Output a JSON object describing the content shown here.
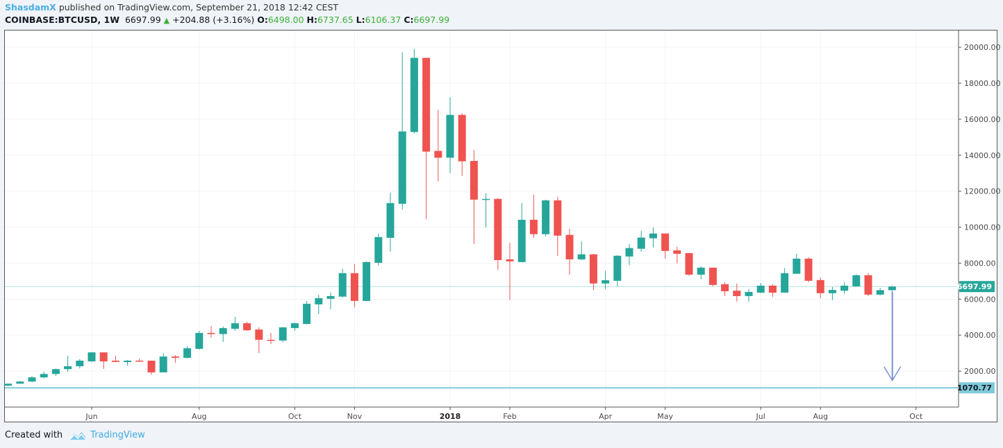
{
  "header": {
    "author": "ShasdamX",
    "published_text": "published on TradingView.com, September 21, 2018 12:42 CEST",
    "symbol": "COINBASE:BTCUSD, 1W",
    "last": "6697.99",
    "change": "+204.88 (+3.16%)",
    "o_label": "O:",
    "o": "6498.00",
    "h_label": "H:",
    "h": "6737.65",
    "l_label": "L:",
    "l": "6106.37",
    "c_label": "C:",
    "c": "6697.99",
    "change_icon": "triangle-up-icon"
  },
  "footer": {
    "created_with": "Created with",
    "brand": "TradingView",
    "logo_icon": "tradingview-cloud-logo"
  },
  "colors": {
    "up": "#26a69a",
    "down": "#ef5350",
    "last_price_line": "#b2e0dc",
    "support_line": "#7ecad8",
    "arrow": "#7b8fd6",
    "header_values": "#3bb03b"
  },
  "chart_data": {
    "type": "candlestick",
    "interval": "1W",
    "ylim": [
      0,
      20930
    ],
    "y_ticks": [
      "2000.00",
      "4000.00",
      "6000.00",
      "8000.00",
      "10000.00",
      "12000.00",
      "14000.00",
      "16000.00",
      "18000.00",
      "20000.00"
    ],
    "y_tick_values": [
      2000,
      4000,
      6000,
      8000,
      10000,
      12000,
      14000,
      16000,
      18000,
      20000
    ],
    "x_ticks": [
      {
        "label": "Jun",
        "date": "2017-06-05",
        "bold": false
      },
      {
        "label": "Aug",
        "date": "2017-08-07",
        "bold": false
      },
      {
        "label": "Oct",
        "date": "2017-10-02",
        "bold": false
      },
      {
        "label": "Nov",
        "date": "2017-11-06",
        "bold": false
      },
      {
        "label": "2018",
        "date": "2018-01-01",
        "bold": true
      },
      {
        "label": "Feb",
        "date": "2018-02-05",
        "bold": false
      },
      {
        "label": "Apr",
        "date": "2018-04-02",
        "bold": false
      },
      {
        "label": "May",
        "date": "2018-05-07",
        "bold": false
      },
      {
        "label": "Jul",
        "date": "2018-07-02",
        "bold": false
      },
      {
        "label": "Aug",
        "date": "2018-08-06",
        "bold": false
      },
      {
        "label": "Oct",
        "date": "2018-10-01",
        "bold": false
      }
    ],
    "grid": true,
    "columns": [
      "date",
      "open",
      "high",
      "low",
      "close"
    ],
    "candles": [
      [
        "2017-04-17",
        1190,
        1310,
        1180,
        1300
      ],
      [
        "2017-04-24",
        1300,
        1450,
        1290,
        1420
      ],
      [
        "2017-05-01",
        1420,
        1730,
        1390,
        1650
      ],
      [
        "2017-05-08",
        1650,
        1960,
        1610,
        1840
      ],
      [
        "2017-05-15",
        1840,
        2140,
        1730,
        2110
      ],
      [
        "2017-05-22",
        2110,
        2850,
        1960,
        2270
      ],
      [
        "2017-05-29",
        2270,
        2660,
        2150,
        2580
      ],
      [
        "2017-06-05",
        2540,
        3050,
        2520,
        3040
      ],
      [
        "2017-06-12",
        3040,
        3040,
        2120,
        2540
      ],
      [
        "2017-06-19",
        2580,
        2850,
        2500,
        2510
      ],
      [
        "2017-06-26",
        2500,
        2620,
        2310,
        2580
      ],
      [
        "2017-07-03",
        2580,
        2700,
        2540,
        2560
      ],
      [
        "2017-07-10",
        2580,
        2580,
        1800,
        1930
      ],
      [
        "2017-07-17",
        1930,
        3000,
        1930,
        2810
      ],
      [
        "2017-07-24",
        2810,
        2890,
        2460,
        2740
      ],
      [
        "2017-07-31",
        2740,
        3390,
        2700,
        3270
      ],
      [
        "2017-08-07",
        3240,
        4240,
        3200,
        4120
      ],
      [
        "2017-08-14",
        4120,
        4510,
        3860,
        4060
      ],
      [
        "2017-08-21",
        4060,
        4480,
        3620,
        4390
      ],
      [
        "2017-08-28",
        4350,
        5010,
        4240,
        4660
      ],
      [
        "2017-09-04",
        4660,
        4740,
        4240,
        4270
      ],
      [
        "2017-09-11",
        4310,
        4430,
        3000,
        3740
      ],
      [
        "2017-09-18",
        3740,
        4120,
        3500,
        3700
      ],
      [
        "2017-09-25",
        3700,
        4450,
        3600,
        4430
      ],
      [
        "2017-10-02",
        4390,
        4700,
        4240,
        4660
      ],
      [
        "2017-10-09",
        4620,
        5890,
        4600,
        5740
      ],
      [
        "2017-10-16",
        5710,
        6240,
        5170,
        6050
      ],
      [
        "2017-10-23",
        6020,
        6370,
        5440,
        6170
      ],
      [
        "2017-10-30",
        6140,
        7690,
        6100,
        7440
      ],
      [
        "2017-11-06",
        7440,
        7940,
        5550,
        5900
      ],
      [
        "2017-11-13",
        5900,
        8100,
        5880,
        8060
      ],
      [
        "2017-11-20",
        8020,
        9650,
        7870,
        9450
      ],
      [
        "2017-11-27",
        9410,
        11920,
        8640,
        11340
      ],
      [
        "2017-12-04",
        11300,
        19720,
        10990,
        15320
      ],
      [
        "2017-12-11",
        15290,
        19910,
        15200,
        19410
      ],
      [
        "2017-12-18",
        19410,
        19410,
        10450,
        14200
      ],
      [
        "2017-12-25",
        14240,
        16520,
        12540,
        13860
      ],
      [
        "2018-01-01",
        13860,
        17220,
        13000,
        16240
      ],
      [
        "2018-01-08",
        16240,
        16330,
        12850,
        13660
      ],
      [
        "2018-01-15",
        13680,
        14280,
        9070,
        11530
      ],
      [
        "2018-01-22",
        11530,
        11880,
        9990,
        11570
      ],
      [
        "2018-01-29",
        11570,
        11620,
        7630,
        8170
      ],
      [
        "2018-02-05",
        8210,
        9130,
        5940,
        8100
      ],
      [
        "2018-02-12",
        8060,
        11340,
        8060,
        10410
      ],
      [
        "2018-02-19",
        10410,
        11810,
        9410,
        9610
      ],
      [
        "2018-02-26",
        9610,
        11530,
        9490,
        11490
      ],
      [
        "2018-03-05",
        11490,
        11690,
        8400,
        9530
      ],
      [
        "2018-03-12",
        9570,
        9920,
        7360,
        8210
      ],
      [
        "2018-03-19",
        8210,
        9220,
        8170,
        8490
      ],
      [
        "2018-03-26",
        8490,
        8510,
        6490,
        6870
      ],
      [
        "2018-04-02",
        6870,
        7570,
        6560,
        7050
      ],
      [
        "2018-04-09",
        7020,
        8450,
        6710,
        8410
      ],
      [
        "2018-04-16",
        8370,
        9060,
        7880,
        8840
      ],
      [
        "2018-04-23",
        8800,
        9800,
        8640,
        9420
      ],
      [
        "2018-04-30",
        9380,
        9990,
        8880,
        9650
      ],
      [
        "2018-05-07",
        9650,
        9650,
        8260,
        8680
      ],
      [
        "2018-05-14",
        8710,
        8910,
        7990,
        8520
      ],
      [
        "2018-05-21",
        8560,
        8560,
        7300,
        7360
      ],
      [
        "2018-05-28",
        7360,
        7830,
        7110,
        7750
      ],
      [
        "2018-06-04",
        7750,
        7760,
        6720,
        6790
      ],
      [
        "2018-06-11",
        6830,
        6950,
        6170,
        6440
      ],
      [
        "2018-06-18",
        6470,
        6870,
        5860,
        6170
      ],
      [
        "2018-06-25",
        6170,
        6560,
        5860,
        6400
      ],
      [
        "2018-07-02",
        6360,
        6900,
        6330,
        6750
      ],
      [
        "2018-07-09",
        6750,
        6820,
        6130,
        6360
      ],
      [
        "2018-07-16",
        6360,
        7720,
        6360,
        7440
      ],
      [
        "2018-07-23",
        7410,
        8520,
        7410,
        8250
      ],
      [
        "2018-07-30",
        8250,
        8330,
        6950,
        7020
      ],
      [
        "2018-08-06",
        7060,
        7210,
        6050,
        6330
      ],
      [
        "2018-08-13",
        6330,
        6670,
        5940,
        6510
      ],
      [
        "2018-08-20",
        6470,
        6950,
        6290,
        6750
      ],
      [
        "2018-08-27",
        6710,
        7370,
        6710,
        7330
      ],
      [
        "2018-09-03",
        7330,
        7440,
        6170,
        6250
      ],
      [
        "2018-09-10",
        6250,
        6630,
        6210,
        6500
      ],
      [
        "2018-09-17",
        6498,
        6737.65,
        6106.37,
        6697.99
      ]
    ],
    "price_lines": [
      {
        "value": 6697.99,
        "label": "6697.99",
        "kind": "last-price"
      },
      {
        "value": 1070.77,
        "label": "1070.77",
        "kind": "horizontal-line"
      }
    ],
    "annotations": [
      {
        "type": "arrow-down",
        "date_index_from_last": 1,
        "from": 6400,
        "to": 1480
      }
    ]
  }
}
